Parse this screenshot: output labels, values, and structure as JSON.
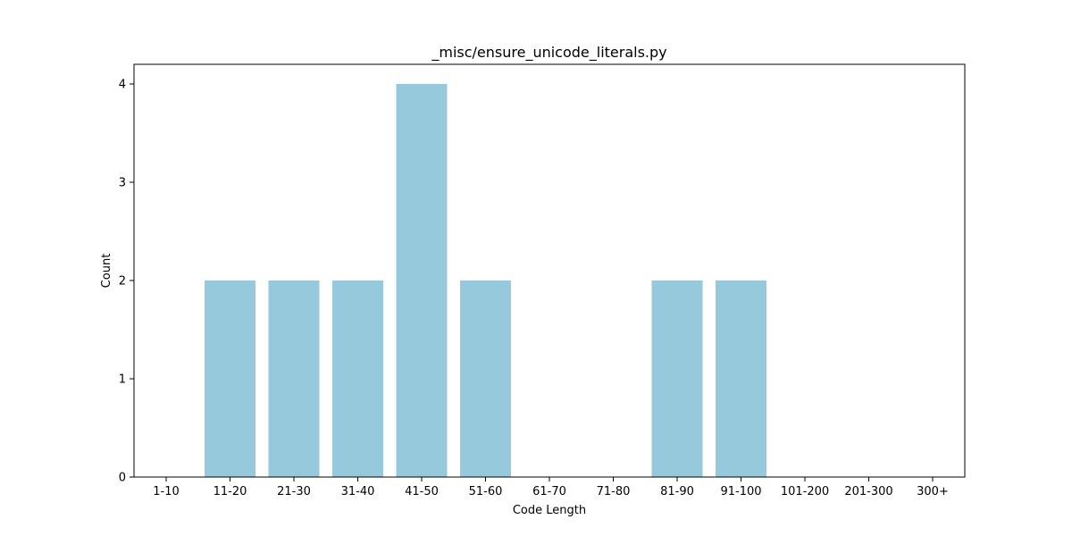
{
  "chart_data": {
    "type": "bar",
    "title": "_misc/ensure_unicode_literals.py",
    "xlabel": "Code Length",
    "ylabel": "Count",
    "categories": [
      "1-10",
      "11-20",
      "21-30",
      "31-40",
      "41-50",
      "51-60",
      "61-70",
      "71-80",
      "81-90",
      "91-100",
      "101-200",
      "201-300",
      "300+"
    ],
    "values": [
      0,
      2,
      2,
      2,
      4,
      2,
      0,
      0,
      2,
      2,
      0,
      0,
      0
    ],
    "ylim": [
      0,
      4.2
    ],
    "yticks": [
      0,
      1,
      2,
      3,
      4
    ],
    "grid": false,
    "legend": "none",
    "bar_color": "#96c9dc"
  }
}
